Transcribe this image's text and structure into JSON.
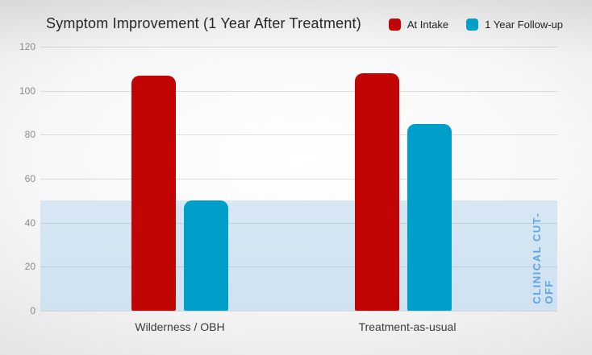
{
  "chart_data": {
    "type": "bar",
    "title": "Symptom Improvement (1 Year After Treatment)",
    "categories": [
      "Wilderness / OBH",
      "Treatment-as-usual"
    ],
    "series": [
      {
        "name": "At Intake",
        "color": "#c10505",
        "values": [
          107,
          108
        ]
      },
      {
        "name": "1 Year Follow-up",
        "color": "#009fc9",
        "values": [
          50,
          85
        ]
      }
    ],
    "ylim": [
      0,
      120
    ],
    "yticks": [
      0,
      20,
      40,
      60,
      80,
      100,
      120
    ],
    "grid": true,
    "legend_position": "top-right",
    "cutoff_band": {
      "from": 0,
      "to": 50,
      "label": "CLINICAL CUT-OFF",
      "fill": "#cfe2f0",
      "label_color": "#5ea4e8"
    },
    "colors": {
      "background_edge": "#c5c5c5",
      "gridline": "#d9d9d9",
      "tick_text": "#8b8b8b",
      "title_text": "#262626",
      "category_text": "#3a3a3a"
    }
  }
}
